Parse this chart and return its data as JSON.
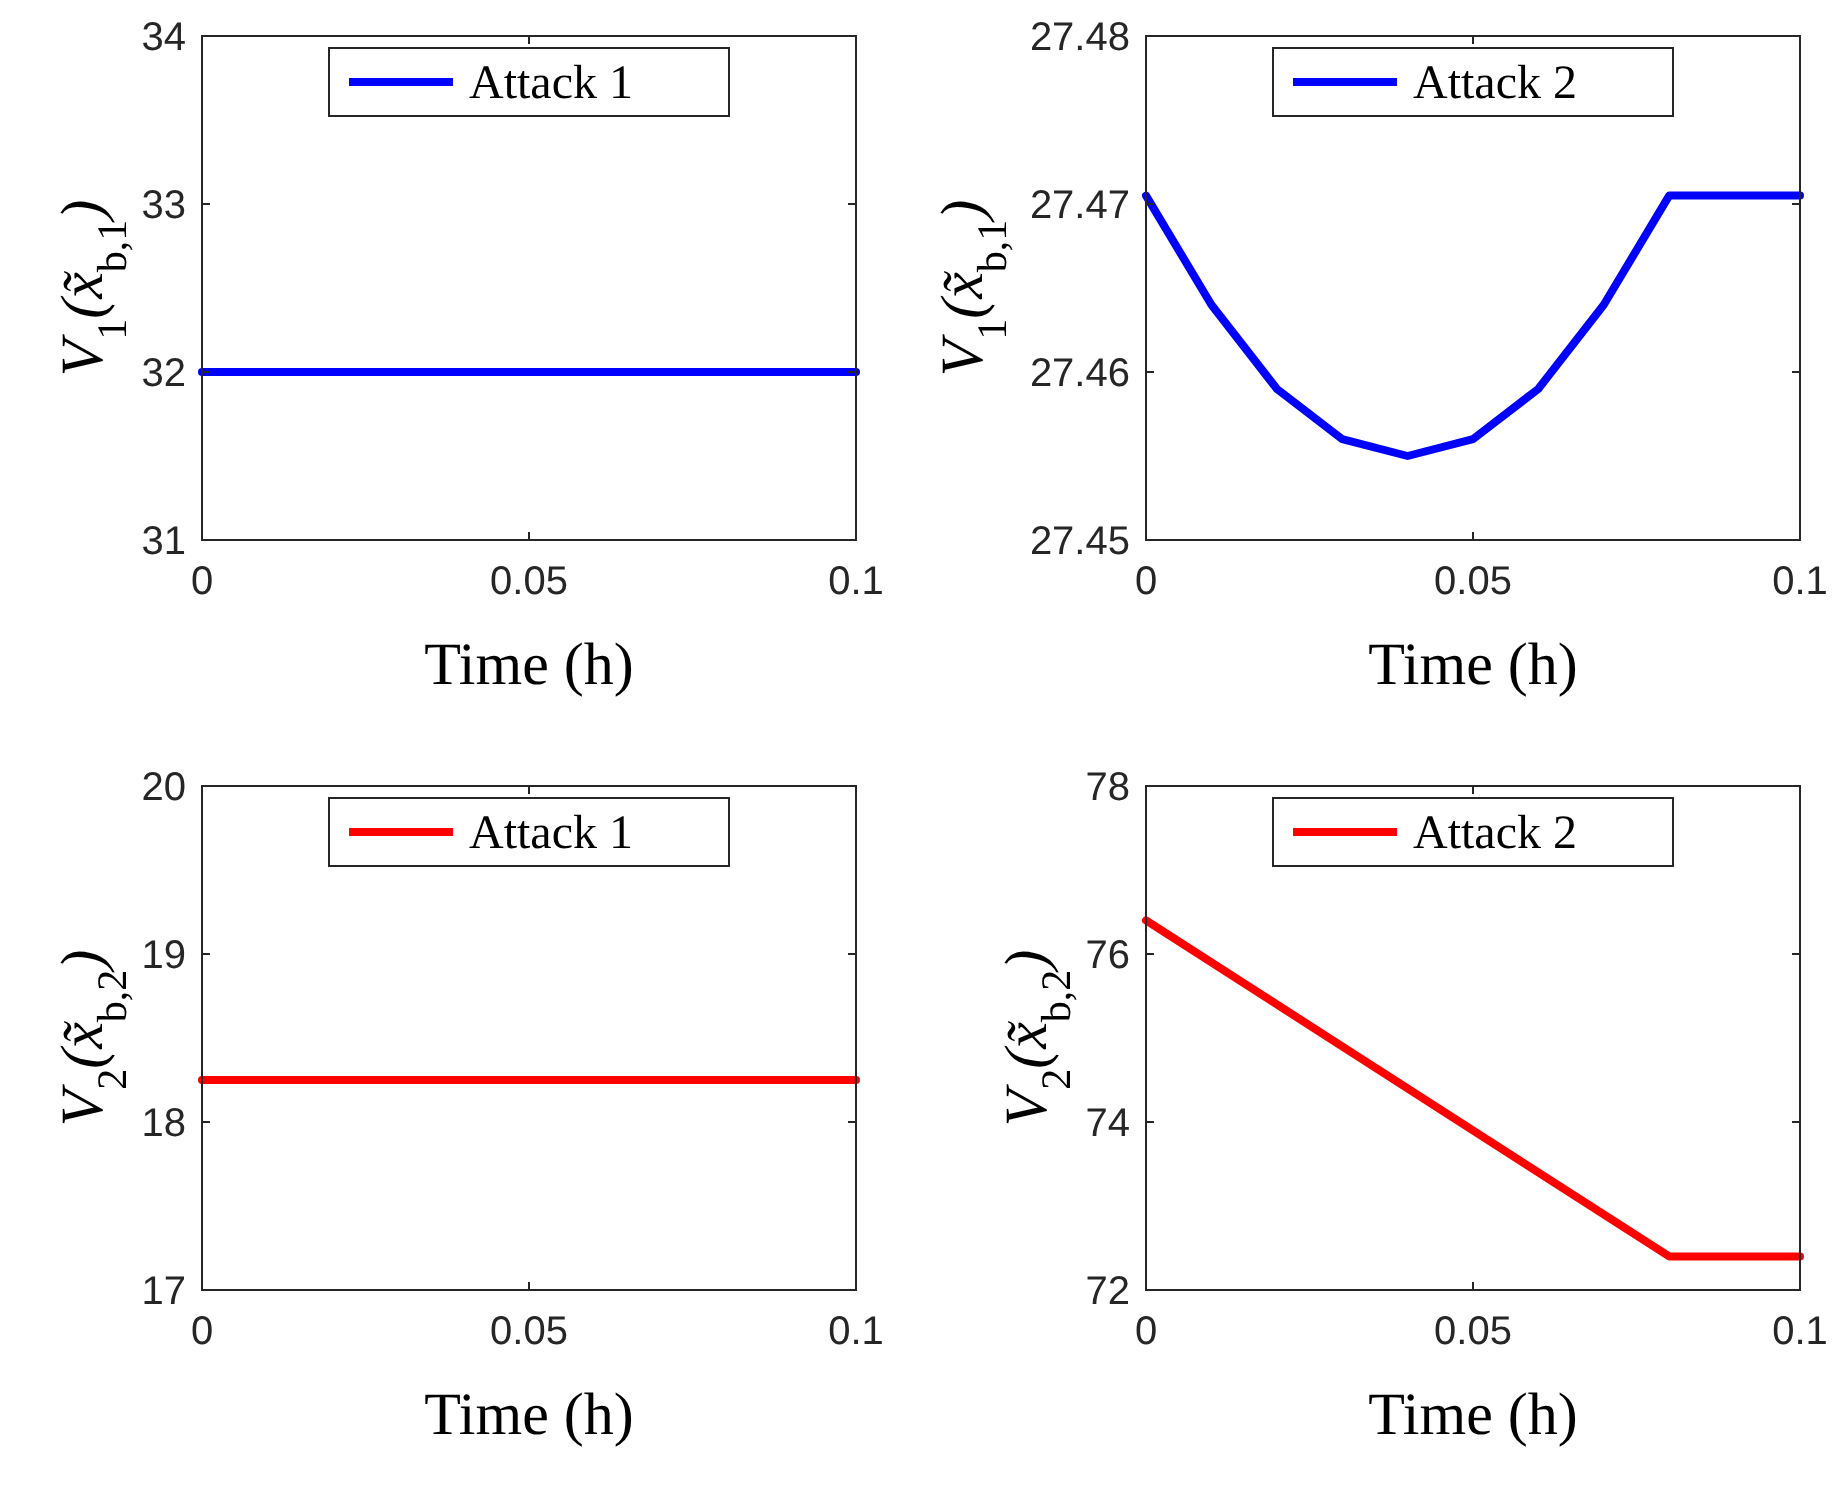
{
  "chart_data": [
    {
      "type": "line",
      "xlabel": "Time (h)",
      "ylabel": "V$_{1}$(x̃$_{b,1}$)",
      "x": [
        0,
        0.1
      ],
      "series": [
        {
          "name": "Attack 1",
          "color": "#0000ff",
          "values": [
            32,
            32
          ]
        }
      ],
      "xlim": [
        0,
        0.1
      ],
      "xticks": [
        0,
        0.05,
        0.1
      ],
      "ylim": [
        31,
        34
      ],
      "yticks": [
        31,
        32,
        33,
        34
      ],
      "legend": "top",
      "grid": false
    },
    {
      "type": "line",
      "xlabel": "Time (h)",
      "ylabel": "V$_{1}$(x̃$_{b,1}$)",
      "x": [
        0,
        0.01,
        0.02,
        0.03,
        0.04,
        0.05,
        0.06,
        0.07,
        0.08,
        0.09,
        0.1
      ],
      "series": [
        {
          "name": "Attack 2",
          "color": "#0000ff",
          "values": [
            27.4705,
            27.464,
            27.459,
            27.456,
            27.455,
            27.456,
            27.459,
            27.464,
            27.4705,
            27.4705,
            27.4705
          ]
        }
      ],
      "xlim": [
        0,
        0.1
      ],
      "xticks": [
        0,
        0.05,
        0.1
      ],
      "ylim": [
        27.45,
        27.48
      ],
      "yticks": [
        27.45,
        27.46,
        27.47,
        27.48
      ],
      "legend": "top",
      "grid": false
    },
    {
      "type": "line",
      "xlabel": "Time (h)",
      "ylabel": "V$_{2}$(x̃$_{b,2}$)",
      "x": [
        0,
        0.1
      ],
      "series": [
        {
          "name": "Attack 1",
          "color": "#ff0000",
          "values": [
            18.25,
            18.25
          ]
        }
      ],
      "xlim": [
        0,
        0.1
      ],
      "xticks": [
        0,
        0.05,
        0.1
      ],
      "ylim": [
        17,
        20
      ],
      "yticks": [
        17,
        18,
        19,
        20
      ],
      "legend": "top",
      "grid": false
    },
    {
      "type": "line",
      "xlabel": "Time (h)",
      "ylabel": "V$_{2}$(x̃$_{b,2}$)",
      "x": [
        0,
        0.08,
        0.1
      ],
      "series": [
        {
          "name": "Attack 2",
          "color": "#ff0000",
          "values": [
            76.4,
            72.4,
            72.4
          ]
        }
      ],
      "xlim": [
        0,
        0.1
      ],
      "xticks": [
        0,
        0.05,
        0.1
      ],
      "ylim": [
        72,
        78
      ],
      "yticks": [
        72,
        74,
        76,
        78
      ],
      "legend": "top",
      "grid": false
    }
  ]
}
